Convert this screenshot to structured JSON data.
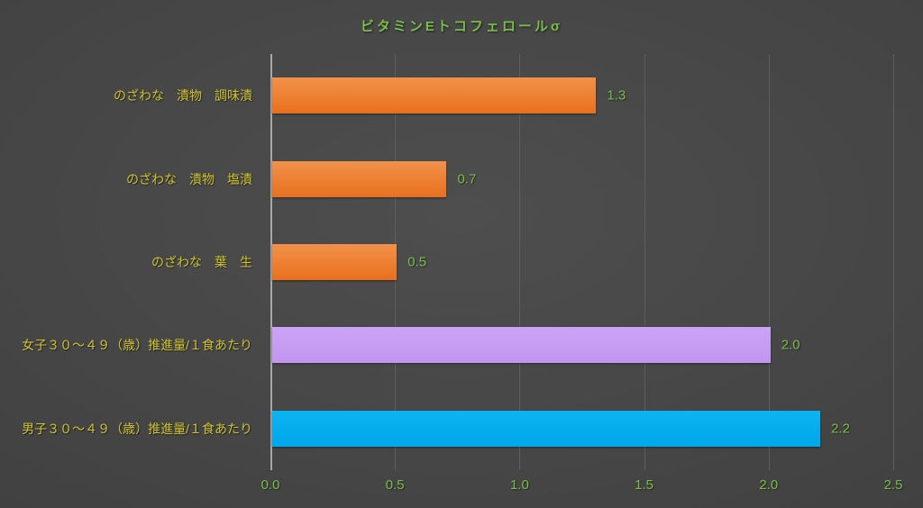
{
  "chart_data": {
    "type": "bar",
    "orientation": "horizontal",
    "title": "ビタミンEトコフェロールσ",
    "categories": [
      "のざわな　漬物　調味漬",
      "のざわな　漬物　塩漬",
      "のざわな　葉　生",
      "女子３０～４９（歳）推進量/１食あたり",
      "男子３０～４９（歳）推進量/１食あたり"
    ],
    "values": [
      1.3,
      0.7,
      0.5,
      2.0,
      2.2
    ],
    "value_labels": [
      "1.3",
      "0.7",
      "0.5",
      "2.0",
      "2.2"
    ],
    "bar_color_names": [
      "orange",
      "orange",
      "orange",
      "purple",
      "blue"
    ],
    "x_ticks": [
      "0.0",
      "0.5",
      "1.0",
      "1.5",
      "2.0",
      "2.5"
    ],
    "x_tick_values": [
      0,
      0.5,
      1.0,
      1.5,
      2.0,
      2.5
    ],
    "xlim": [
      0,
      2.5
    ],
    "grid": "vertical-gridlines-on",
    "legend": "none"
  },
  "colors": {
    "title_text": "#79BE48",
    "category_label_text": "#CFC42F",
    "value_label_text": "#77C044",
    "tick_label_text": "#77C044",
    "axis_line": "#A8A8A8",
    "gridline": "#5E5E5E",
    "background_center": "#4E4E4E",
    "background_edge": "#353535",
    "bar_palette": {
      "orange": [
        "#F2914A",
        "#E8701D"
      ],
      "purple": [
        "#CBA3F5",
        "#C295EF"
      ],
      "blue": [
        "#0DB4F2",
        "#00A7E9"
      ]
    }
  }
}
